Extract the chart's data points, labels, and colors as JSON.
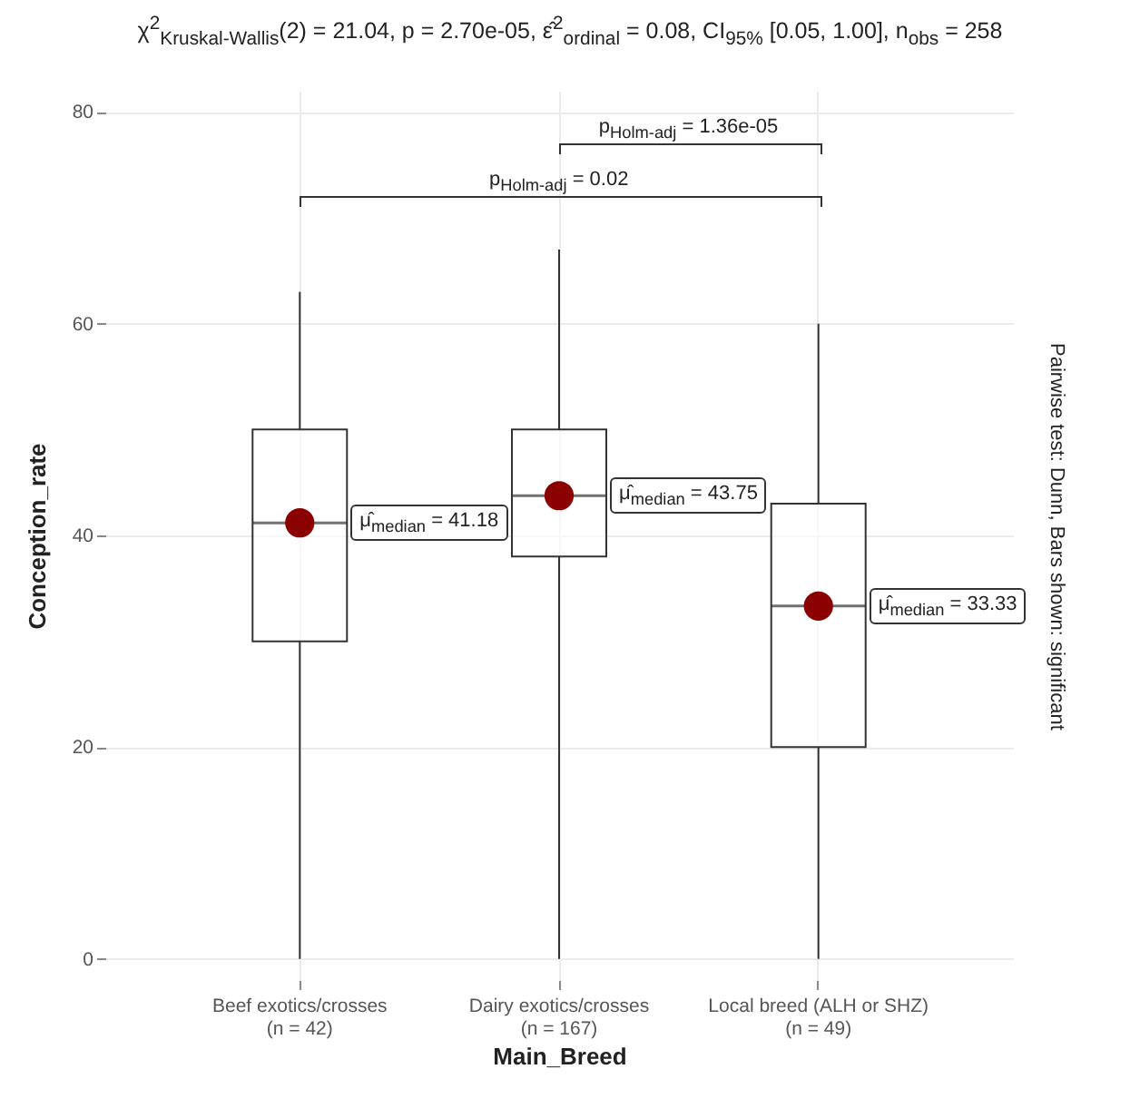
{
  "chart_data": {
    "type": "box",
    "title": "χ$^{2}$$_{Kruskal-Wallis}$(2) = 21.04, p = 2.70e-05, ε̂$^{2}$$_{ordinal}$ = 0.08, CI$_{95%}$ [0.05, 1.00], n$_{obs}$ = 258",
    "xlabel": "Main_Breed",
    "ylabel": "Conception_rate",
    "categories": [
      "Beef exotics/crosses\n(n = 42)",
      "Dairy exotics/crosses\n(n = 167)",
      "Local breed (ALH or SHZ)\n(n = 49)"
    ],
    "boxes": [
      {
        "low": 0,
        "q1": 30,
        "median": 41.18,
        "q3": 50,
        "high": 63
      },
      {
        "low": 0,
        "q1": 38,
        "median": 43.75,
        "q3": 50,
        "high": 67
      },
      {
        "low": 0,
        "q1": 20,
        "median": 33.33,
        "q3": 43,
        "high": 60
      }
    ],
    "series": [
      {
        "type": "scatter",
        "color": "#8b0000",
        "x": [
          "Beef exotics/crosses\n(n = 42)",
          "Dairy exotics/crosses\n(n = 167)",
          "Local breed (ALH or SHZ)\n(n = 49)"
        ],
        "values": [
          41.18,
          43.75,
          33.33
        ]
      }
    ],
    "ylim": [
      -2,
      82
    ],
    "yticks": [
      0,
      20,
      40,
      60,
      80
    ],
    "grid": true,
    "annotations": [
      "p$_{Holm-adj}$ = 1.36e-05",
      "p$_{Holm-adj}$ = 0.02",
      "μ̂$_{median}$ = 41.18",
      "μ̂$_{median}$ = 43.75",
      "μ̂$_{median}$ = 33.33",
      "Pairwise test: Dunn, Bars shown: significant"
    ]
  }
}
